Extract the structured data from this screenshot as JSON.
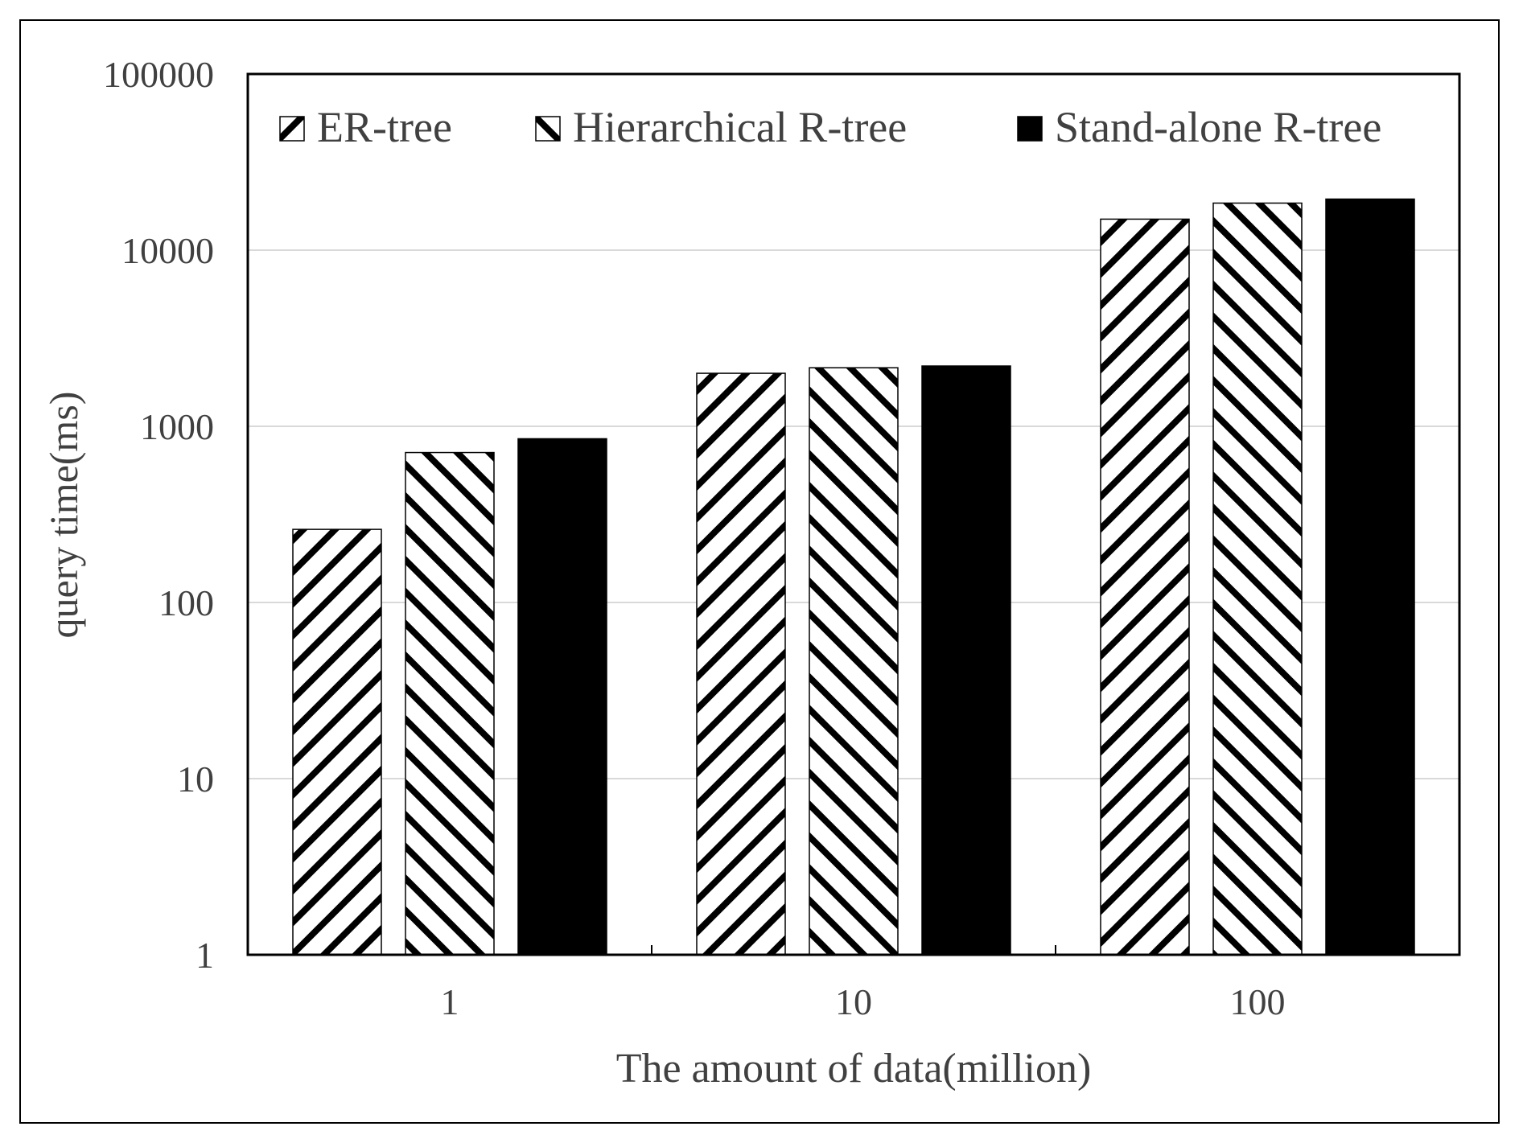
{
  "chart_data": {
    "type": "bar",
    "title": "",
    "xlabel": "The amount of data(million)",
    "ylabel": "query time(ms)",
    "yscale": "log",
    "ylim": [
      1,
      100000
    ],
    "yticks": [
      "1",
      "10",
      "100",
      "1000",
      "10000",
      "100000"
    ],
    "categories": [
      "1",
      "10",
      "100"
    ],
    "grid": true,
    "legend_position": "top",
    "series": [
      {
        "name": "ER-tree",
        "pattern": "diagonal-up",
        "values": [
          260,
          2000,
          15000
        ]
      },
      {
        "name": "Hierarchical R-tree",
        "pattern": "diagonal-down",
        "values": [
          710,
          2150,
          18500
        ]
      },
      {
        "name": "Stand-alone R-tree",
        "pattern": "solid",
        "values": [
          850,
          2200,
          19500
        ]
      }
    ]
  },
  "colors": {
    "bar_fill": "#000000",
    "grid": "#d9d9d9",
    "axis": "#000000",
    "text": "#404040"
  }
}
